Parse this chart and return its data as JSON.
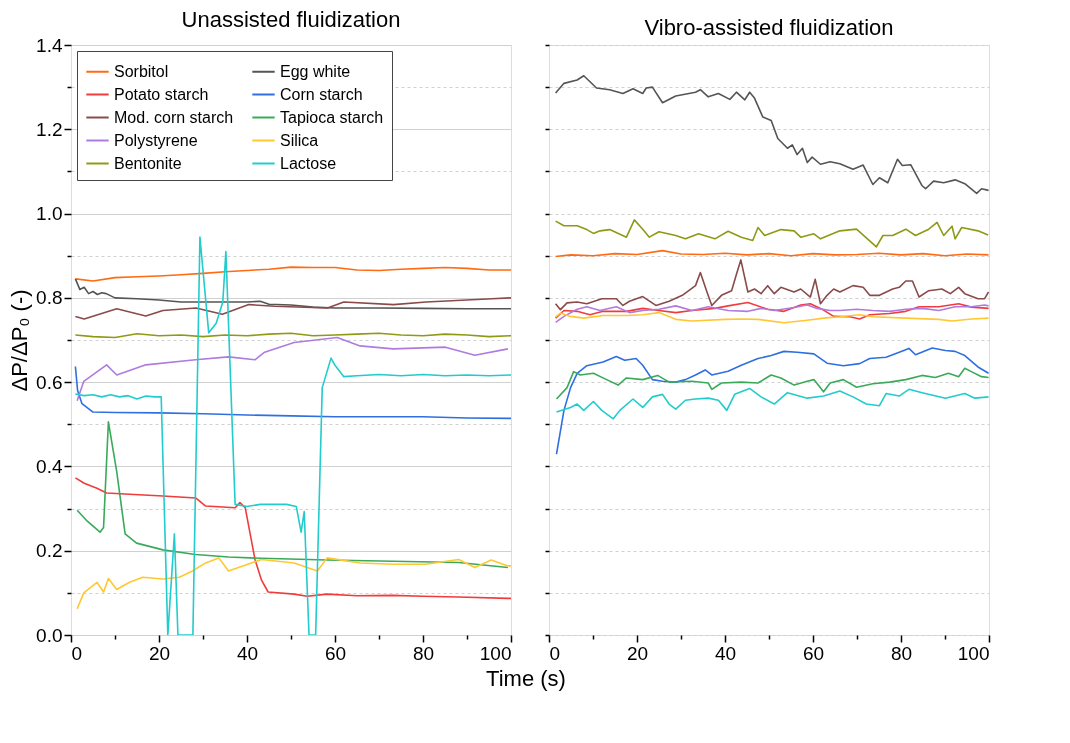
{
  "chart_data": [
    {
      "type": "line",
      "title": "Unassisted fluidization",
      "xlabel": "Time (s)",
      "ylabel": "ΔP/ΔP₀ (-)",
      "xlim": [
        0,
        100
      ],
      "ylim": [
        0,
        1.4
      ],
      "xticks": [
        0,
        {
          "value": 10,
          "label": null
        },
        20,
        {
          "value": 30,
          "label": null
        },
        40,
        {
          "value": 50,
          "label": null
        },
        60,
        {
          "value": 70,
          "label": null
        },
        80,
        {
          "value": 90,
          "label": null
        },
        100
      ],
      "yticks": [
        {
          "value": 0,
          "label": "0.0"
        },
        {
          "value": 0.1,
          "label": null
        },
        {
          "value": 0.2,
          "label": "0.2"
        },
        {
          "value": 0.3,
          "label": null
        },
        {
          "value": 0.4,
          "label": "0.4"
        },
        {
          "value": 0.5,
          "label": null
        },
        {
          "value": 0.6,
          "label": "0.6"
        },
        {
          "value": 0.7,
          "label": null
        },
        {
          "value": 0.8,
          "label": "0.8"
        },
        {
          "value": 0.9,
          "label": null
        },
        {
          "value": 1.0,
          "label": "1.0"
        },
        {
          "value": 1.1,
          "label": null
        },
        {
          "value": 1.2,
          "label": "1.2"
        },
        {
          "value": 1.3,
          "label": null
        },
        {
          "value": 1.4,
          "label": "1.4"
        }
      ],
      "grid": "y",
      "legend": "top left",
      "series": [
        {
          "name": "Sorbitol",
          "color": "#ff6a13",
          "x": [
            1,
            5,
            10,
            15,
            20,
            25,
            30,
            35,
            40,
            45,
            50,
            55,
            60,
            65,
            70,
            75,
            80,
            85,
            90,
            95,
            100
          ],
          "values": [
            0.845,
            0.84,
            0.848,
            0.85,
            0.852,
            0.855,
            0.858,
            0.862,
            0.865,
            0.868,
            0.873,
            0.872,
            0.872,
            0.866,
            0.865,
            0.868,
            0.87,
            0.872,
            0.87,
            0.866,
            0.866
          ]
        },
        {
          "name": "Egg white",
          "color": "#555555",
          "x": [
            1,
            2,
            3,
            4,
            5,
            6,
            7,
            8,
            10,
            15,
            20,
            25,
            30,
            35,
            40,
            43,
            45,
            50,
            55,
            60,
            70,
            80,
            90,
            100
          ],
          "values": [
            0.845,
            0.82,
            0.825,
            0.81,
            0.815,
            0.808,
            0.812,
            0.81,
            0.8,
            0.798,
            0.795,
            0.79,
            0.79,
            0.79,
            0.79,
            0.792,
            0.785,
            0.783,
            0.778,
            0.776,
            0.776,
            0.775,
            0.774,
            0.774
          ]
        },
        {
          "name": "Potato starch",
          "color": "#f03c3c",
          "x": [
            1,
            3,
            5.9,
            8.1,
            13.3,
            20.9,
            28.4,
            30.6,
            37.3,
            38.4,
            39.6,
            41.8,
            43.3,
            44.8,
            50.7,
            53.7,
            58.2,
            65,
            73.1,
            80,
            88,
            99.3,
            100
          ],
          "values": [
            0.373,
            0.36,
            0.348,
            0.337,
            0.334,
            0.33,
            0.325,
            0.306,
            0.302,
            0.314,
            0.302,
            0.18,
            0.13,
            0.102,
            0.097,
            0.092,
            0.097,
            0.093,
            0.094,
            0.092,
            0.09,
            0.087,
            0.087
          ]
        },
        {
          "name": "Corn starch",
          "color": "#2f6fe0",
          "x": [
            1,
            1.5,
            2.5,
            5,
            10,
            20,
            30,
            40,
            50,
            60,
            70,
            80,
            90,
            100
          ],
          "values": [
            0.637,
            0.58,
            0.549,
            0.529,
            0.528,
            0.527,
            0.525,
            0.522,
            0.52,
            0.518,
            0.518,
            0.518,
            0.515,
            0.514
          ]
        },
        {
          "name": "Mod. corn starch",
          "color": "#8b4a4a",
          "x": [
            1,
            3,
            10.4,
            17,
            20.9,
            28.4,
            34.4,
            40.4,
            46.3,
            58.3,
            62,
            73.3,
            80.7,
            95.7,
            100
          ],
          "values": [
            0.756,
            0.75,
            0.774,
            0.757,
            0.77,
            0.776,
            0.761,
            0.784,
            0.78,
            0.776,
            0.79,
            0.784,
            0.79,
            0.798,
            0.8
          ]
        },
        {
          "name": "Tapioca starch",
          "color": "#3aaa5a",
          "x": [
            1.4,
            3.7,
            6.6,
            7.4,
            8.5,
            10.4,
            12.3,
            14.9,
            20.9,
            28.3,
            35.8,
            43.3,
            58.2,
            73.2,
            88.1,
            99.3
          ],
          "values": [
            0.296,
            0.27,
            0.244,
            0.255,
            0.506,
            0.387,
            0.24,
            0.218,
            0.202,
            0.191,
            0.185,
            0.182,
            0.178,
            0.175,
            0.172,
            0.16
          ]
        },
        {
          "name": "Polystyrene",
          "color": "#b07ae0",
          "x": [
            1.4,
            2.9,
            8.1,
            10.4,
            17,
            28.3,
            35.8,
            41.8,
            44,
            50.7,
            60.5,
            65.7,
            73.2,
            85.1,
            91.8,
            99.3
          ],
          "values": [
            0.556,
            0.602,
            0.641,
            0.617,
            0.641,
            0.653,
            0.66,
            0.653,
            0.671,
            0.694,
            0.706,
            0.686,
            0.679,
            0.683,
            0.664,
            0.679
          ]
        },
        {
          "name": "Silica",
          "color": "#ffc832",
          "x": [
            1.4,
            2.9,
            5.9,
            7.4,
            8.5,
            10.4,
            13.3,
            16.3,
            20.9,
            24.6,
            27.6,
            30.6,
            33.6,
            35.8,
            43.3,
            50.7,
            56,
            58.2,
            65.7,
            73.2,
            80.6,
            88.1,
            91.8,
            95.5,
            99.3,
            100
          ],
          "values": [
            0.062,
            0.1,
            0.125,
            0.102,
            0.134,
            0.108,
            0.125,
            0.137,
            0.133,
            0.137,
            0.152,
            0.171,
            0.183,
            0.152,
            0.179,
            0.171,
            0.152,
            0.183,
            0.171,
            0.168,
            0.168,
            0.179,
            0.16,
            0.178,
            0.164,
            0.164
          ]
        },
        {
          "name": "Bentonite",
          "color": "#8e9a14",
          "x": [
            1,
            5,
            10,
            15,
            20,
            25,
            30,
            35,
            40,
            45,
            50,
            55,
            60,
            65,
            70,
            75,
            80,
            85,
            90,
            95,
            100
          ],
          "values": [
            0.712,
            0.708,
            0.706,
            0.715,
            0.71,
            0.712,
            0.708,
            0.712,
            0.71,
            0.714,
            0.716,
            0.71,
            0.712,
            0.714,
            0.716,
            0.712,
            0.71,
            0.714,
            0.712,
            0.708,
            0.71
          ]
        },
        {
          "name": "Lactose",
          "color": "#22cccc",
          "x": [
            1,
            3,
            5,
            7,
            9,
            11,
            13,
            15,
            17,
            19,
            20.5,
            22,
            23.5,
            24.3,
            27.7,
            29.3,
            31.3,
            33,
            34.5,
            35.2,
            37.3,
            40,
            43,
            46,
            49,
            51.2,
            52.3,
            53,
            54.1,
            55.6,
            57.1,
            59.1,
            60,
            62,
            65,
            70,
            75,
            80,
            85,
            90,
            95,
            100
          ],
          "values": [
            0.572,
            0.568,
            0.57,
            0.565,
            0.57,
            0.565,
            0.568,
            0.56,
            0.567,
            0.565,
            0.565,
            0,
            0.24,
            0,
            0,
            0.944,
            0.717,
            0.74,
            0.79,
            0.91,
            0.31,
            0.305,
            0.31,
            0.31,
            0.31,
            0.305,
            0.244,
            0.293,
            0,
            0,
            0.587,
            0.657,
            0.64,
            0.613,
            0.615,
            0.618,
            0.615,
            0.618,
            0.615,
            0.617,
            0.615,
            0.617
          ]
        }
      ]
    },
    {
      "type": "line",
      "title": "Vibro-assisted fluidization",
      "xlim": [
        0,
        100
      ],
      "ylim": [
        0,
        1.4
      ],
      "tick_labels": "x",
      "xticks": [
        0,
        {
          "value": 10,
          "label": null
        },
        20,
        {
          "value": 30,
          "label": null
        },
        40,
        {
          "value": 50,
          "label": null
        },
        60,
        {
          "value": 70,
          "label": null
        },
        80,
        {
          "value": 90,
          "label": null
        },
        100
      ],
      "yticks": [
        {
          "value": 0,
          "label": null
        },
        {
          "value": 0.1,
          "label": null
        },
        {
          "value": 0.2,
          "label": null
        },
        {
          "value": 0.3,
          "label": null
        },
        {
          "value": 0.4,
          "label": null
        },
        {
          "value": 0.5,
          "label": null
        },
        {
          "value": 0.6,
          "label": null
        },
        {
          "value": 0.7,
          "label": null
        },
        {
          "value": 0.8,
          "label": null
        },
        {
          "value": 0.9,
          "label": null
        },
        {
          "value": 1.0,
          "label": null
        },
        {
          "value": 1.1,
          "label": null
        },
        {
          "value": 1.2,
          "label": null
        },
        {
          "value": 1.3,
          "label": null
        },
        {
          "value": 1.4,
          "label": null
        }
      ],
      "grid": "y",
      "series": [
        {
          "color": "#ff6a13",
          "x": [
            1.5,
            5,
            10,
            15,
            20,
            25.8,
            30,
            35,
            40,
            45,
            50,
            55,
            60,
            65,
            70,
            75,
            80,
            85,
            90,
            95,
            99.9
          ],
          "values": [
            0.898,
            0.902,
            0.9,
            0.905,
            0.903,
            0.912,
            0.904,
            0.903,
            0.906,
            0.902,
            0.905,
            0.9,
            0.905,
            0.902,
            0.903,
            0.906,
            0.902,
            0.905,
            0.9,
            0.904,
            0.902
          ]
        },
        {
          "color": "#555555",
          "x": [
            1.5,
            3.4,
            6.4,
            7.9,
            10.8,
            13.8,
            16.8,
            19.1,
            21.3,
            22.1,
            23.5,
            25.8,
            28.8,
            33.3,
            34.4,
            36.2,
            38.5,
            41.1,
            42.6,
            44.5,
            45.6,
            46.7,
            48.6,
            50.5,
            52,
            54.2,
            55.3,
            56.4,
            57.6,
            58.7,
            59.8,
            61.7,
            63.9,
            66.1,
            69.1,
            71.4,
            73.6,
            75.1,
            77,
            79.2,
            80.3,
            82.2,
            84.8,
            85.6,
            87.4,
            89.7,
            92.3,
            94.5,
            97.2,
            98.3,
            99.9
          ],
          "values": [
            1.286,
            1.309,
            1.317,
            1.327,
            1.298,
            1.294,
            1.285,
            1.296,
            1.285,
            1.298,
            1.3,
            1.263,
            1.279,
            1.288,
            1.294,
            1.277,
            1.285,
            1.271,
            1.288,
            1.27,
            1.288,
            1.274,
            1.229,
            1.221,
            1.178,
            1.155,
            1.163,
            1.14,
            1.155,
            1.121,
            1.134,
            1.117,
            1.123,
            1.118,
            1.105,
            1.115,
            1.069,
            1.085,
            1.073,
            1.129,
            1.114,
            1.116,
            1.066,
            1.059,
            1.077,
            1.073,
            1.08,
            1.071,
            1.048,
            1.059,
            1.055
          ]
        },
        {
          "color": "#f03c3c",
          "x": [
            1.5,
            3.4,
            6.4,
            9.3,
            12.3,
            17.6,
            21.3,
            25,
            28.8,
            32.5,
            37.7,
            40.7,
            45.2,
            49.7,
            53.4,
            57.2,
            59.4,
            62.4,
            64.7,
            68.4,
            70.6,
            72.9,
            77.4,
            81.1,
            84.1,
            88.6,
            93.1,
            96,
            99.9
          ],
          "values": [
            0.752,
            0.77,
            0.768,
            0.76,
            0.768,
            0.768,
            0.775,
            0.77,
            0.765,
            0.77,
            0.775,
            0.781,
            0.789,
            0.773,
            0.768,
            0.783,
            0.786,
            0.771,
            0.756,
            0.755,
            0.75,
            0.76,
            0.763,
            0.768,
            0.779,
            0.779,
            0.786,
            0.778,
            0.775
          ]
        },
        {
          "color": "#2f6fe0",
          "x": [
            1.7,
            3.4,
            4.9,
            6.4,
            8.6,
            12.3,
            15.3,
            17.2,
            19.8,
            21.3,
            23.5,
            25.8,
            28.8,
            31,
            33.3,
            35.5,
            37,
            40.7,
            43.7,
            47.5,
            50.5,
            53.4,
            56.4,
            60.2,
            63.2,
            66.9,
            70.6,
            72.9,
            76.6,
            79.6,
            81.8,
            83.3,
            87.1,
            90.1,
            92.3,
            94.5,
            97.5,
            99.9
          ],
          "values": [
            0.429,
            0.533,
            0.587,
            0.621,
            0.639,
            0.648,
            0.661,
            0.652,
            0.656,
            0.64,
            0.606,
            0.602,
            0.6,
            0.606,
            0.617,
            0.629,
            0.617,
            0.626,
            0.64,
            0.656,
            0.663,
            0.673,
            0.671,
            0.667,
            0.645,
            0.639,
            0.644,
            0.656,
            0.659,
            0.671,
            0.68,
            0.665,
            0.681,
            0.675,
            0.673,
            0.663,
            0.636,
            0.621
          ]
        },
        {
          "color": "#8b4a4a",
          "x": [
            1.5,
            2.6,
            4.1,
            6.4,
            8.6,
            12,
            15.3,
            16.8,
            18.3,
            21.3,
            24.3,
            27.3,
            30.3,
            33.3,
            34.4,
            35.9,
            37,
            39.2,
            41.5,
            42.6,
            43.6,
            45.2,
            46.7,
            48.2,
            49.7,
            51.2,
            52.7,
            55.7,
            57.2,
            59.4,
            60.5,
            61.7,
            63.2,
            64.7,
            66.1,
            69.1,
            71.4,
            72.9,
            75.1,
            78.1,
            79.6,
            81.1,
            82.6,
            84.1,
            86.3,
            89.3,
            91.2,
            93.1,
            94.5,
            97.5,
            99,
            99.9
          ],
          "values": [
            0.786,
            0.772,
            0.788,
            0.79,
            0.786,
            0.798,
            0.798,
            0.782,
            0.792,
            0.803,
            0.782,
            0.792,
            0.806,
            0.829,
            0.86,
            0.814,
            0.782,
            0.806,
            0.817,
            0.856,
            0.89,
            0.814,
            0.821,
            0.81,
            0.829,
            0.81,
            0.825,
            0.814,
            0.821,
            0.802,
            0.844,
            0.786,
            0.806,
            0.821,
            0.814,
            0.829,
            0.825,
            0.806,
            0.806,
            0.821,
            0.825,
            0.84,
            0.84,
            0.802,
            0.817,
            0.821,
            0.81,
            0.825,
            0.81,
            0.798,
            0.798,
            0.814
          ]
        },
        {
          "color": "#3aaa5a",
          "x": [
            1.7,
            4.1,
            5.6,
            7.1,
            10.1,
            13.1,
            15.7,
            17.6,
            21.3,
            24.7,
            27.3,
            32.5,
            36.2,
            37,
            39.2,
            43.7,
            47.5,
            50.5,
            52.7,
            55.7,
            58.7,
            60.2,
            62.4,
            63.9,
            66.9,
            69.9,
            73.6,
            77.4,
            81.1,
            84.8,
            87.8,
            90.8,
            93.1,
            94.5,
            96,
            98.3,
            99.9
          ],
          "values": [
            0.56,
            0.587,
            0.625,
            0.617,
            0.621,
            0.606,
            0.593,
            0.61,
            0.606,
            0.616,
            0.6,
            0.602,
            0.598,
            0.583,
            0.598,
            0.6,
            0.598,
            0.617,
            0.61,
            0.593,
            0.602,
            0.606,
            0.577,
            0.598,
            0.606,
            0.588,
            0.596,
            0.6,
            0.606,
            0.616,
            0.611,
            0.621,
            0.613,
            0.633,
            0.625,
            0.613,
            0.611
          ]
        },
        {
          "color": "#b07ae0",
          "x": [
            1.5,
            3.4,
            6.4,
            8.6,
            11.6,
            15.3,
            18.3,
            21.3,
            25,
            28.8,
            32.5,
            36.2,
            40.7,
            45.2,
            48.2,
            51.2,
            55.7,
            58.7,
            60.9,
            63.9,
            66.1,
            69.9,
            73.6,
            77.4,
            81.1,
            84.8,
            88.6,
            92.3,
            96,
            99,
            99.9
          ],
          "values": [
            0.742,
            0.756,
            0.773,
            0.779,
            0.77,
            0.779,
            0.765,
            0.77,
            0.773,
            0.781,
            0.77,
            0.779,
            0.77,
            0.768,
            0.775,
            0.77,
            0.777,
            0.783,
            0.775,
            0.77,
            0.77,
            0.773,
            0.77,
            0.768,
            0.773,
            0.775,
            0.77,
            0.779,
            0.779,
            0.783,
            0.781
          ]
        },
        {
          "color": "#ffc832",
          "x": [
            1.5,
            2.6,
            4.9,
            7.9,
            12.3,
            17.6,
            21.3,
            25,
            28.8,
            32.5,
            40,
            43.7,
            47.5,
            53.4,
            58.7,
            62.4,
            66.1,
            70.6,
            73.6,
            81.1,
            88.6,
            91.6,
            96,
            99.9
          ],
          "values": [
            0.755,
            0.764,
            0.756,
            0.752,
            0.758,
            0.758,
            0.76,
            0.765,
            0.749,
            0.745,
            0.749,
            0.75,
            0.749,
            0.741,
            0.747,
            0.752,
            0.755,
            0.76,
            0.755,
            0.752,
            0.749,
            0.745,
            0.75,
            0.752
          ]
        },
        {
          "color": "#8e9a14",
          "x": [
            1.5,
            3.4,
            6.4,
            8.6,
            10.1,
            11.6,
            13.8,
            17.6,
            19.4,
            21.3,
            22.8,
            25,
            28.8,
            31,
            34,
            37.7,
            40.7,
            43.7,
            46.3,
            47.5,
            49,
            52.7,
            55.7,
            57.2,
            60.2,
            61.7,
            66.1,
            69.9,
            74.4,
            75.9,
            78.1,
            81.1,
            83.3,
            86.3,
            88.2,
            89.7,
            91.6,
            92.3,
            93.8,
            97.5,
            99.8
          ],
          "values": [
            0.982,
            0.971,
            0.971,
            0.962,
            0.953,
            0.959,
            0.962,
            0.944,
            0.985,
            0.963,
            0.944,
            0.957,
            0.948,
            0.94,
            0.952,
            0.94,
            0.958,
            0.944,
            0.936,
            0.967,
            0.948,
            0.962,
            0.959,
            0.944,
            0.952,
            0.94,
            0.959,
            0.963,
            0.921,
            0.948,
            0.948,
            0.963,
            0.948,
            0.963,
            0.979,
            0.948,
            0.97,
            0.94,
            0.967,
            0.959,
            0.949
          ]
        },
        {
          "color": "#22cccc",
          "x": [
            1.7,
            4.9,
            6.4,
            7.9,
            10.1,
            12,
            14.6,
            16.1,
            19.1,
            21.3,
            23.5,
            25.8,
            27.3,
            28.8,
            31,
            33.3,
            36.2,
            38.5,
            40.4,
            42.2,
            45.6,
            48.2,
            51.2,
            54.2,
            58.7,
            62.4,
            66.1,
            69.1,
            72.1,
            75.1,
            76.6,
            79.6,
            81.8,
            84.8,
            90.1,
            94.5,
            96.8,
            99.9
          ],
          "values": [
            0.529,
            0.54,
            0.548,
            0.533,
            0.554,
            0.533,
            0.513,
            0.533,
            0.56,
            0.54,
            0.565,
            0.571,
            0.548,
            0.536,
            0.557,
            0.56,
            0.562,
            0.557,
            0.533,
            0.571,
            0.585,
            0.565,
            0.548,
            0.575,
            0.562,
            0.567,
            0.579,
            0.565,
            0.548,
            0.544,
            0.573,
            0.567,
            0.583,
            0.575,
            0.562,
            0.573,
            0.562,
            0.565
          ]
        }
      ]
    }
  ]
}
